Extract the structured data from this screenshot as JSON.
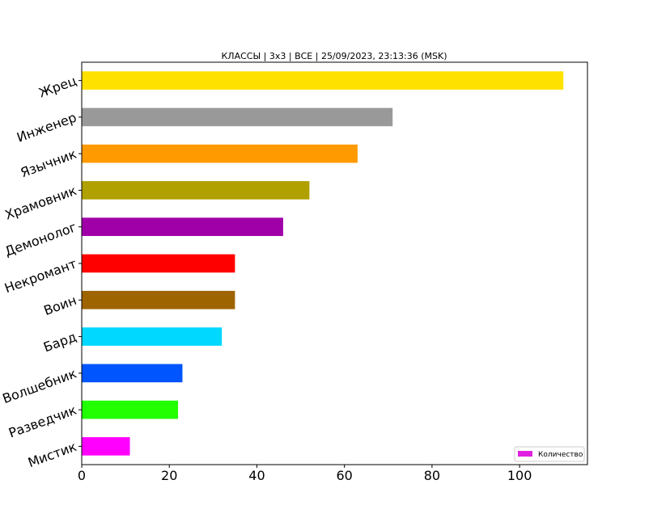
{
  "chart_data": {
    "type": "bar",
    "orientation": "horizontal",
    "title": "КЛАССЫ | 3x3 | ВСЕ | 25/09/2023, 23:13:36 (MSK)",
    "xlabel": "",
    "ylabel": "",
    "xlim": [
      0,
      115.5
    ],
    "xticks": [
      0,
      20,
      40,
      60,
      80,
      100
    ],
    "grid": false,
    "legend_position": "bottom-right",
    "categories": [
      "Мистик",
      "Разведчик",
      "Волшебник",
      "Бард",
      "Воин",
      "Некромант",
      "Демонолог",
      "Храмовник",
      "Язычник",
      "Инженер",
      "Жрец"
    ],
    "series": [
      {
        "name": "Количество",
        "values": [
          11,
          22,
          23,
          32,
          35,
          35,
          46,
          52,
          63,
          71,
          110
        ],
        "colors": [
          "#ff00ff",
          "#22ff00",
          "#0055ff",
          "#00d8ff",
          "#9e6400",
          "#ff0000",
          "#a000a8",
          "#b0a000",
          "#ff9a00",
          "#999999",
          "#ffe100"
        ]
      }
    ],
    "legend_swatch_color": "#e020e0"
  }
}
